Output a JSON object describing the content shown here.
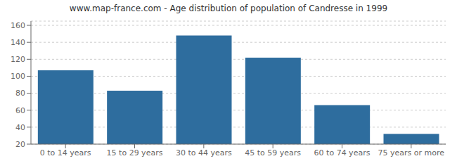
{
  "chart_data": {
    "type": "bar",
    "title": "www.map-france.com - Age distribution of population of Candresse in 1999",
    "categories": [
      "0 to 14 years",
      "15 to 29 years",
      "30 to 44 years",
      "45 to 59 years",
      "60 to 74 years",
      "75 years or more"
    ],
    "values": [
      107,
      83,
      148,
      122,
      66,
      32
    ],
    "color": "#2e6d9e",
    "ylim": [
      20,
      165
    ],
    "yticks": [
      20,
      40,
      60,
      80,
      100,
      120,
      140,
      160
    ],
    "grid": true
  }
}
